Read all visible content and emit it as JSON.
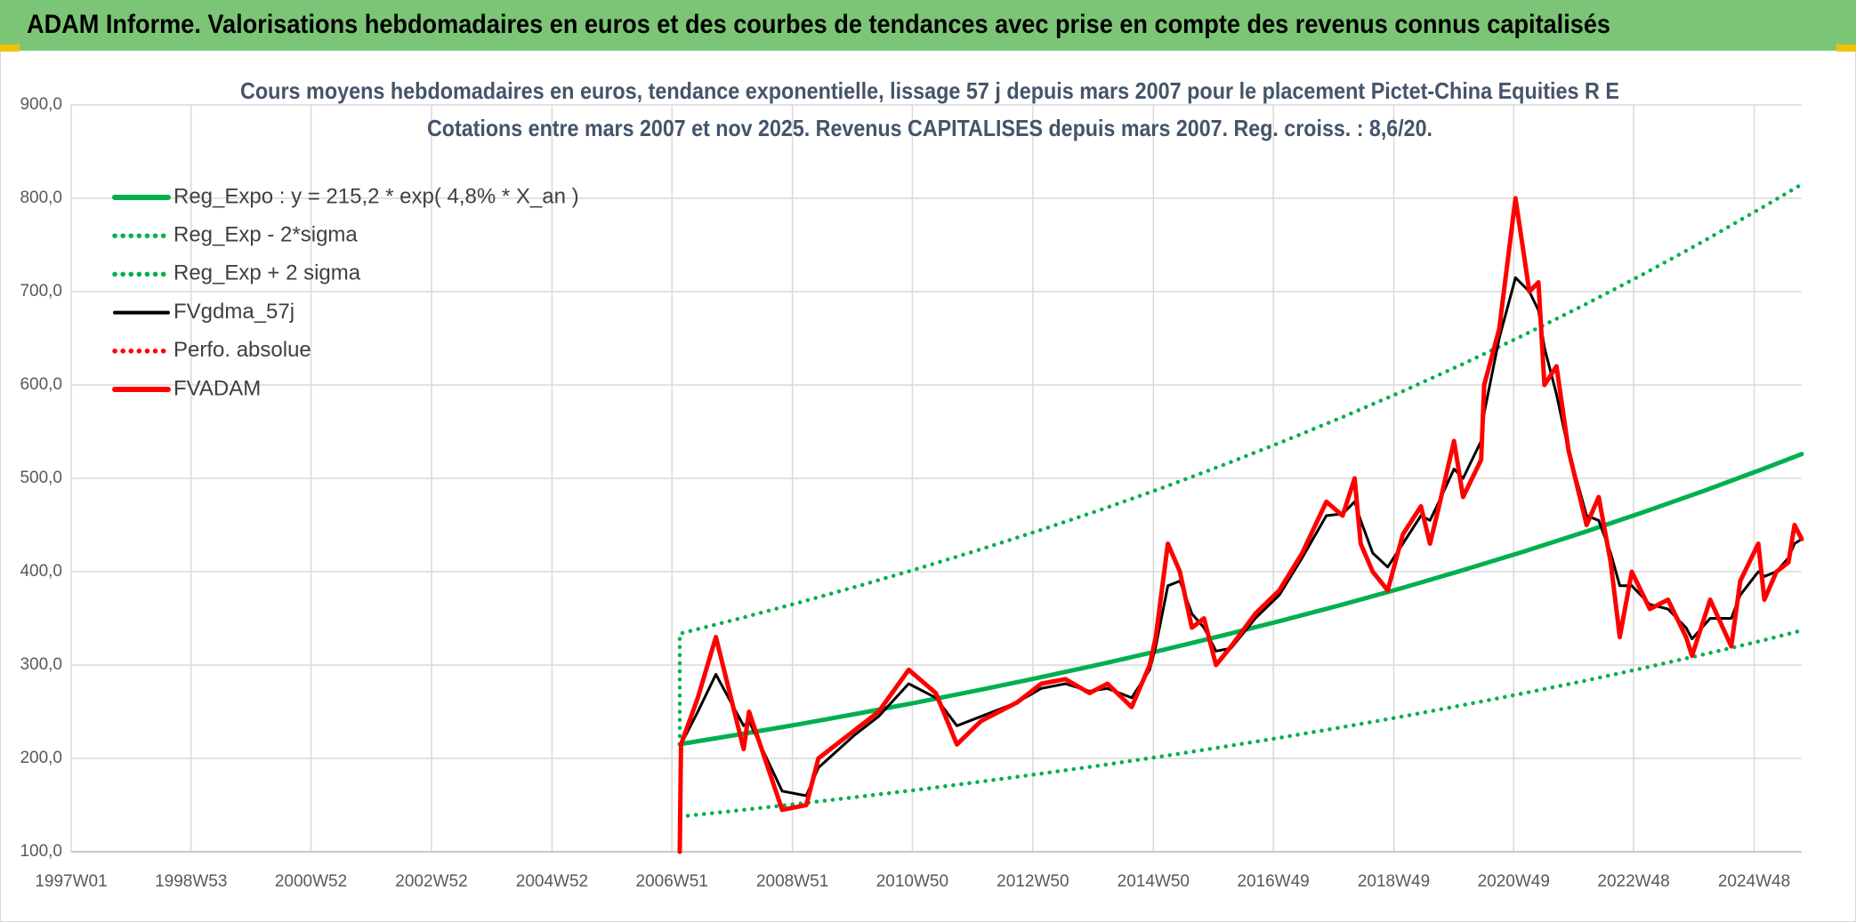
{
  "header": {
    "title": "ADAM Informe. Valorisations hebdomadaires en euros et des courbes de tendances avec prise en compte des revenus connus capitalisés"
  },
  "chart_data": {
    "type": "line",
    "title": "Cours moyens hebdomadaires en euros, tendance exponentielle, lissage 57 j depuis mars 2007 pour le placement Pictet-China Equities R E",
    "subtitle": "Cotations entre mars 2007 et nov 2025. Revenus CAPITALISES depuis mars 2007. Reg. croiss. : 8,6/20.",
    "xlim": [
      1997.0,
      2025.72
    ],
    "ylim": [
      100,
      900
    ],
    "yticks": [
      {
        "value": 100,
        "label": "100,0"
      },
      {
        "value": 200,
        "label": "200,0"
      },
      {
        "value": 300,
        "label": "300,0"
      },
      {
        "value": 400,
        "label": "400,0"
      },
      {
        "value": 500,
        "label": "500,0"
      },
      {
        "value": 600,
        "label": "600,0"
      },
      {
        "value": 700,
        "label": "700,0"
      },
      {
        "value": 800,
        "label": "800,0"
      },
      {
        "value": 900,
        "label": "900,0"
      }
    ],
    "xticks": [
      {
        "value": 1997.0,
        "label": "1997W01"
      },
      {
        "value": 1998.99,
        "label": "1998W53"
      },
      {
        "value": 2000.98,
        "label": "2000W52"
      },
      {
        "value": 2002.98,
        "label": "2002W52"
      },
      {
        "value": 2004.98,
        "label": "2004W52"
      },
      {
        "value": 2006.97,
        "label": "2006W51"
      },
      {
        "value": 2008.97,
        "label": "2008W51"
      },
      {
        "value": 2010.96,
        "label": "2010W50"
      },
      {
        "value": 2012.96,
        "label": "2012W50"
      },
      {
        "value": 2014.96,
        "label": "2014W50"
      },
      {
        "value": 2016.95,
        "label": "2016W49"
      },
      {
        "value": 2018.95,
        "label": "2018W49"
      },
      {
        "value": 2020.94,
        "label": "2020W49"
      },
      {
        "value": 2022.93,
        "label": "2022W48"
      },
      {
        "value": 2024.93,
        "label": "2024W48"
      }
    ],
    "grid": true,
    "legend": "upper left",
    "x": [
      2007.1,
      2007.12,
      2007.4,
      2007.7,
      2008.16,
      2008.25,
      2008.8,
      2009.2,
      2009.4,
      2010.0,
      2010.4,
      2010.9,
      2011.35,
      2011.7,
      2012.1,
      2012.7,
      2013.1,
      2013.5,
      2013.9,
      2014.2,
      2014.6,
      2014.9,
      2015.0,
      2015.2,
      2015.4,
      2015.6,
      2015.8,
      2016.0,
      2016.25,
      2016.65,
      2017.05,
      2017.43,
      2017.83,
      2018.1,
      2018.3,
      2018.4,
      2018.6,
      2018.85,
      2019.1,
      2019.4,
      2019.55,
      2019.7,
      2019.95,
      2020.1,
      2020.4,
      2020.45,
      2020.7,
      2020.97,
      2021.2,
      2021.35,
      2021.45,
      2021.65,
      2021.85,
      2022.15,
      2022.35,
      2022.55,
      2022.7,
      2022.9,
      2023.2,
      2023.5,
      2023.8,
      2023.9,
      2024.2,
      2024.55,
      2024.7,
      2025.0,
      2025.1,
      2025.3,
      2025.5,
      2025.6,
      2025.72
    ],
    "series": [
      {
        "name": "Reg_Expo : y = 215,2 * exp( 4,8% *  X_an )",
        "color": "#00b050",
        "style": "solid",
        "x": [
          2007.1,
          2008.1,
          2009.1,
          2010.1,
          2011.1,
          2012.1,
          2013.1,
          2014.1,
          2015.1,
          2016.1,
          2017.1,
          2018.1,
          2019.1,
          2020.1,
          2021.1,
          2022.1,
          2023.1,
          2024.1,
          2025.1,
          2025.72
        ],
        "values": [
          215.2,
          225.8,
          236.9,
          248.6,
          260.8,
          273.6,
          287.0,
          301.1,
          315.9,
          331.5,
          347.8,
          364.9,
          382.8,
          401.7,
          421.4,
          442.1,
          463.9,
          486.7,
          510.6,
          526.0
        ]
      },
      {
        "name": "Reg_Exp - 2*sigma",
        "color": "#00b050",
        "style": "dotted",
        "x": [
          2007.1,
          2008.1,
          2009.1,
          2010.1,
          2011.1,
          2012.1,
          2013.1,
          2014.1,
          2015.1,
          2016.1,
          2017.1,
          2018.1,
          2019.1,
          2020.1,
          2021.1,
          2022.1,
          2023.1,
          2024.1,
          2025.1,
          2025.72
        ],
        "values": [
          137.7,
          144.5,
          151.6,
          159.1,
          166.9,
          175.1,
          183.7,
          192.7,
          202.2,
          212.2,
          222.6,
          233.5,
          245.0,
          257.1,
          269.7,
          282.9,
          296.9,
          311.5,
          326.8,
          337.0
        ]
      },
      {
        "name": "Reg_Exp + 2 sigma",
        "color": "#00b050",
        "style": "dotted",
        "x": [
          2007.1,
          2007.1,
          2008.1,
          2009.1,
          2010.1,
          2011.1,
          2012.1,
          2013.1,
          2014.1,
          2015.1,
          2016.1,
          2017.1,
          2018.1,
          2019.1,
          2020.1,
          2021.1,
          2022.1,
          2023.1,
          2024.1,
          2025.1,
          2025.72
        ],
        "values": [
          215.2,
          333.6,
          350.0,
          367.2,
          385.3,
          404.2,
          424.1,
          444.9,
          466.7,
          489.6,
          513.8,
          539.1,
          565.6,
          593.3,
          622.6,
          653.2,
          685.3,
          719.0,
          754.4,
          791.4,
          815.0
        ]
      },
      {
        "name": "FVgdma_57j",
        "color": "#000000",
        "style": "solid",
        "values": [
          100,
          215,
          250,
          290,
          235,
          240,
          165,
          160,
          190,
          225,
          245,
          280,
          265,
          235,
          245,
          260,
          275,
          280,
          272,
          275,
          265,
          295,
          320,
          385,
          390,
          355,
          340,
          315,
          318,
          350,
          375,
          415,
          460,
          462,
          475,
          455,
          420,
          405,
          430,
          460,
          455,
          475,
          510,
          500,
          540,
          570,
          650,
          715,
          700,
          680,
          640,
          590,
          530,
          460,
          455,
          420,
          385,
          385,
          365,
          360,
          340,
          328,
          350,
          350,
          375,
          400,
          395,
          400,
          415,
          430,
          435
        ]
      },
      {
        "name": "Perfo. absolue",
        "color": "#ff0000",
        "style": "dotted",
        "values": [
          100,
          215,
          265,
          330,
          210,
          250,
          145,
          150,
          200,
          230,
          250,
          295,
          270,
          215,
          240,
          260,
          280,
          285,
          270,
          280,
          255,
          300,
          330,
          430,
          400,
          340,
          350,
          300,
          320,
          355,
          380,
          420,
          475,
          460,
          500,
          430,
          400,
          380,
          440,
          470,
          430,
          470,
          540,
          480,
          520,
          600,
          660,
          800,
          700,
          710,
          600,
          620,
          530,
          450,
          480,
          410,
          330,
          400,
          360,
          370,
          330,
          310,
          370,
          320,
          390,
          430,
          370,
          400,
          410,
          450,
          435
        ]
      },
      {
        "name": "FVADAM",
        "color": "#ff0000",
        "style": "solid",
        "values": [
          100,
          215,
          265,
          330,
          210,
          250,
          145,
          150,
          200,
          230,
          250,
          295,
          270,
          215,
          240,
          260,
          280,
          285,
          270,
          280,
          255,
          300,
          330,
          430,
          400,
          340,
          350,
          300,
          320,
          355,
          380,
          420,
          475,
          460,
          500,
          430,
          400,
          380,
          440,
          470,
          430,
          470,
          540,
          480,
          520,
          600,
          660,
          800,
          700,
          710,
          600,
          620,
          530,
          450,
          480,
          410,
          330,
          400,
          360,
          370,
          330,
          310,
          370,
          320,
          390,
          430,
          370,
          400,
          410,
          450,
          435
        ]
      }
    ]
  }
}
